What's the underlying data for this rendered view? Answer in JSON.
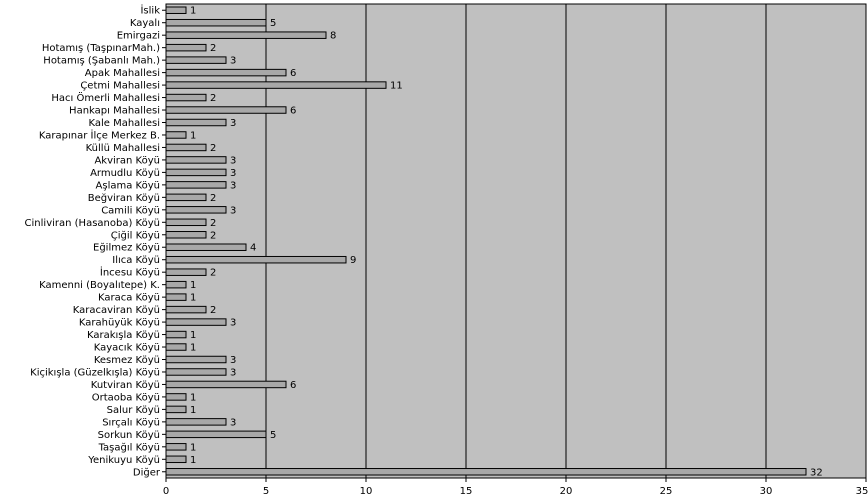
{
  "chart_data": {
    "type": "bar",
    "orientation": "horizontal",
    "categories": [
      "İslik",
      "Kayalı",
      "Emirgazi",
      "Hotamış (TaşpınarMah.)",
      "Hotamış (Şabanlı Mah.)",
      "Apak Mahallesi",
      "Çetmi Mahallesi",
      "Hacı Ömerli Mahallesi",
      "Hankapı Mahallesi",
      "Kale Mahallesi",
      "Karapınar İlçe Merkez B.",
      "Küllü Mahallesi",
      "Akviran Köyü",
      "Armudlu Köyü",
      "Aşlama Köyü",
      "Beğviran Köyü",
      "Camili Köyü",
      "Cinliviran (Hasanoba) Köyü",
      "Çiğil Köyü",
      "Eğilmez Köyü",
      "Ilıca Köyü",
      "İncesu Köyü",
      "Kamenni (Boyalıtepe) K.",
      "Karaca Köyü",
      "Karacaviran Köyü",
      "Karahüyük Köyü",
      "Karakışla Köyü",
      "Kayacık Köyü",
      "Kesmez Köyü",
      "Kiçikışla (Güzelkışla) Köyü",
      "Kutviran Köyü",
      "Ortaoba Köyü",
      "Salur Köyü",
      "Sırçalı Köyü",
      "Sorkun Köyü",
      "Taşağıl Köyü",
      "Yenikuyu Köyü",
      "Diğer"
    ],
    "values": [
      1,
      5,
      8,
      2,
      3,
      6,
      11,
      2,
      6,
      3,
      1,
      2,
      3,
      3,
      3,
      2,
      3,
      2,
      2,
      4,
      9,
      2,
      1,
      1,
      2,
      3,
      1,
      1,
      3,
      3,
      6,
      1,
      1,
      3,
      5,
      1,
      1,
      32
    ],
    "data_labels": [
      "1",
      "5",
      "8",
      "2",
      "3",
      "6",
      "11",
      "2",
      "6",
      "3",
      "1",
      "2",
      "3",
      "3",
      "3",
      "2",
      "3",
      "2",
      "2",
      "4",
      "9",
      "2",
      "1",
      "1",
      "2",
      "3",
      "1",
      "1",
      "3",
      "3",
      "6",
      "1",
      "1",
      "3",
      "5",
      "1",
      "1",
      "32"
    ],
    "xlim": [
      0,
      35
    ],
    "x_ticks": [
      0,
      5,
      10,
      15,
      20,
      25,
      30,
      35
    ],
    "x_tick_labels": [
      "0",
      "5",
      "10",
      "15",
      "20",
      "25",
      "30",
      "35"
    ],
    "title": "",
    "xlabel": "",
    "ylabel": "",
    "grid": "vertical",
    "legend": "none",
    "colors": {
      "plot_background": "#c0c0c0",
      "bar_fill": "#a8a8a8",
      "bar_stroke": "#000000",
      "grid": "#000000"
    }
  }
}
